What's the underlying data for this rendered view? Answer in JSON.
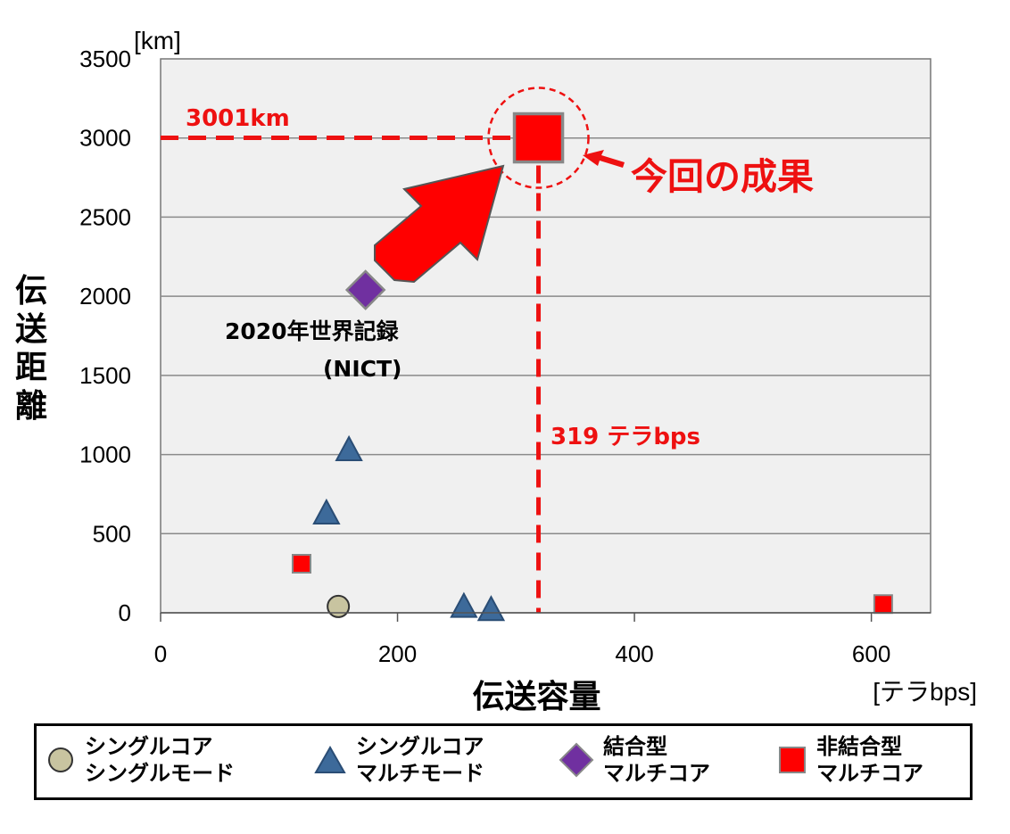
{
  "chart_data": {
    "type": "scatter",
    "xlabel": "伝送容量",
    "xunit": "[テラbps]",
    "ylabel": "伝送距離",
    "yunit": "[km]",
    "xlim": [
      0,
      650
    ],
    "ylim": [
      0,
      3500
    ],
    "xticks": [
      0,
      200,
      400,
      600
    ],
    "yticks": [
      0,
      500,
      1000,
      1500,
      2000,
      2500,
      3000,
      3500
    ],
    "grid": "horizontal",
    "background": "#f0f0f0",
    "series": [
      {
        "name": "シングルコア シングルモード",
        "marker": "circle",
        "color": "#c8c4a0",
        "points": [
          {
            "x": 150,
            "y": 40
          }
        ]
      },
      {
        "name": "シングルコア マルチモード",
        "marker": "triangle",
        "color": "#3d6a9a",
        "points": [
          {
            "x": 140,
            "y": 620
          },
          {
            "x": 159,
            "y": 1020
          },
          {
            "x": 256,
            "y": 30
          },
          {
            "x": 279,
            "y": 10
          }
        ]
      },
      {
        "name": "結合型 マルチコア",
        "marker": "diamond",
        "color": "#7030a0",
        "points": [
          {
            "x": 173,
            "y": 2040
          }
        ]
      },
      {
        "name": "非結合型 マルチコア",
        "marker": "square",
        "color": "#ff0000",
        "points": [
          {
            "x": 119,
            "y": 310
          },
          {
            "x": 610,
            "y": 55
          },
          {
            "x": 319,
            "y": 3001,
            "highlight": true
          }
        ]
      }
    ],
    "annotations": {
      "distance_label": "3001km",
      "capacity_label": "319 テラbps",
      "result_label": "今回の成果",
      "record_line1": "2020年世界記録",
      "record_line2": "(NICT)",
      "highlight_x": 319,
      "highlight_y": 3001
    },
    "legend": {
      "placement": "bottom",
      "items": [
        {
          "line1": "シングルコア",
          "line2": "シングルモード",
          "marker": "circle"
        },
        {
          "line1": "シングルコア",
          "line2": "マルチモード",
          "marker": "triangle"
        },
        {
          "line1": "結合型",
          "line2": "マルチコア",
          "marker": "diamond"
        },
        {
          "line1": "非結合型",
          "line2": "マルチコア",
          "marker": "square"
        }
      ]
    }
  }
}
